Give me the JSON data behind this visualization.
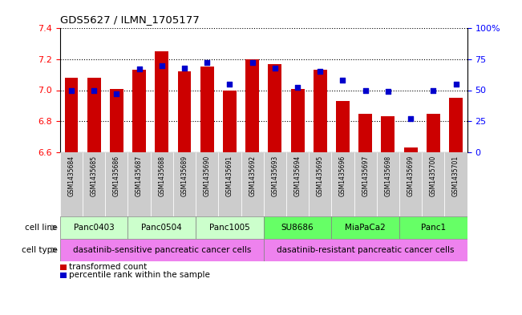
{
  "title": "GDS5627 / ILMN_1705177",
  "samples": [
    "GSM1435684",
    "GSM1435685",
    "GSM1435686",
    "GSM1435687",
    "GSM1435688",
    "GSM1435689",
    "GSM1435690",
    "GSM1435691",
    "GSM1435692",
    "GSM1435693",
    "GSM1435694",
    "GSM1435695",
    "GSM1435696",
    "GSM1435697",
    "GSM1435698",
    "GSM1435699",
    "GSM1435700",
    "GSM1435701"
  ],
  "transformed_counts": [
    7.08,
    7.08,
    7.01,
    7.13,
    7.25,
    7.12,
    7.15,
    7.0,
    7.2,
    7.17,
    7.01,
    7.13,
    6.93,
    6.85,
    6.83,
    6.63,
    6.85,
    6.95
  ],
  "percentile_ranks": [
    50,
    50,
    47,
    67,
    70,
    68,
    72,
    55,
    72,
    68,
    52,
    65,
    58,
    50,
    49,
    27,
    50,
    55
  ],
  "ylim": [
    6.6,
    7.4
  ],
  "yticks": [
    6.6,
    6.8,
    7.0,
    7.2,
    7.4
  ],
  "right_yticks": [
    0,
    25,
    50,
    75,
    100
  ],
  "bar_color": "#cc0000",
  "dot_color": "#0000cc",
  "bar_width": 0.6,
  "cell_lines": [
    {
      "label": "Panc0403",
      "start": 0,
      "end": 2,
      "color": "#ccffcc"
    },
    {
      "label": "Panc0504",
      "start": 3,
      "end": 5,
      "color": "#ccffcc"
    },
    {
      "label": "Panc1005",
      "start": 6,
      "end": 8,
      "color": "#ccffcc"
    },
    {
      "label": "SU8686",
      "start": 9,
      "end": 11,
      "color": "#66ff66"
    },
    {
      "label": "MiaPaCa2",
      "start": 12,
      "end": 14,
      "color": "#66ff66"
    },
    {
      "label": "Panc1",
      "start": 15,
      "end": 17,
      "color": "#66ff66"
    }
  ],
  "cell_types": [
    {
      "label": "dasatinib-sensitive pancreatic cancer cells",
      "start": 0,
      "end": 8,
      "color": "#ee82ee"
    },
    {
      "label": "dasatinib-resistant pancreatic cancer cells",
      "start": 9,
      "end": 17,
      "color": "#ee82ee"
    }
  ],
  "legend_items": [
    {
      "label": "transformed count",
      "color": "#cc0000"
    },
    {
      "label": "percentile rank within the sample",
      "color": "#0000cc"
    }
  ],
  "sample_box_color": "#cccccc",
  "xlim_left": -0.5,
  "xlim_right": 17.5
}
